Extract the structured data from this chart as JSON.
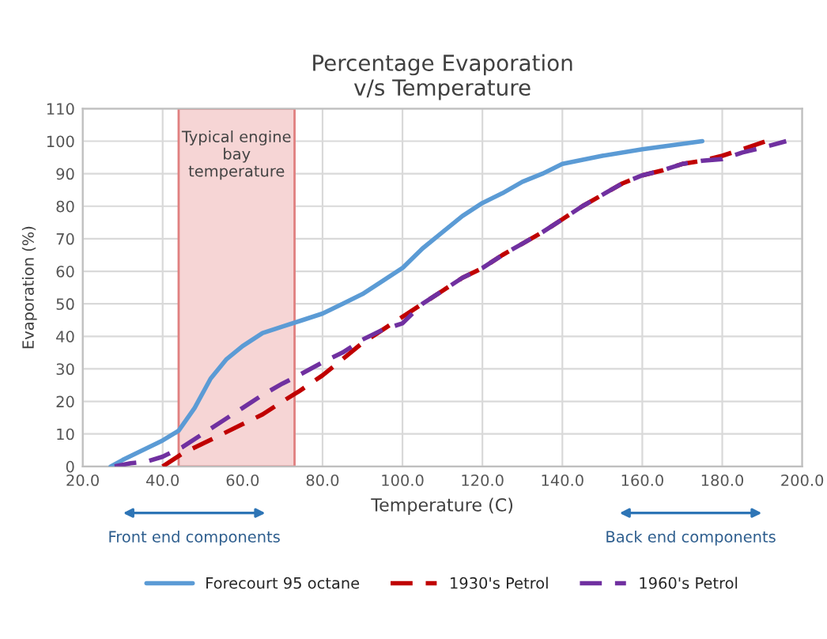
{
  "chart_data": {
    "type": "line",
    "title": "Percentage Evaporation\nv/s Temperature",
    "xlabel": "Temperature (C)",
    "ylabel": "Evaporation (%)",
    "series": [
      {
        "name": "Forecourt 95 octane",
        "color": "#5b9bd5",
        "line_style": "solid",
        "x": [
          27,
          30,
          35,
          40,
          44,
          48,
          52,
          56,
          60,
          65,
          70,
          75,
          80,
          85,
          90,
          95,
          100,
          105,
          110,
          115,
          120,
          125,
          130,
          135,
          140,
          150,
          160,
          175
        ],
        "values": [
          0,
          2,
          5,
          8,
          11,
          18,
          27,
          33,
          37,
          41,
          43,
          45,
          47,
          50,
          53,
          57,
          61,
          67,
          72,
          77,
          81,
          84,
          87.5,
          90,
          93,
          95.5,
          97.5,
          100
        ]
      },
      {
        "name": "1930's Petrol",
        "color": "#c00000",
        "line_style": "dashed",
        "x": [
          40,
          45,
          50,
          55,
          60,
          65,
          70,
          74,
          80,
          85,
          90,
          95,
          100,
          105,
          110,
          115,
          120,
          125,
          130,
          135,
          140,
          145,
          150,
          155,
          160,
          165,
          170,
          175,
          180,
          185,
          191
        ],
        "values": [
          0,
          4,
          7,
          10,
          13,
          16,
          20,
          23,
          28,
          33,
          38,
          42,
          46,
          50,
          54,
          58,
          61,
          65,
          68.5,
          72,
          76,
          80,
          83.5,
          87,
          89.5,
          91,
          93,
          94,
          95.5,
          97.5,
          100
        ]
      },
      {
        "name": "1960's Petrol",
        "color": "#7030a0",
        "line_style": "dashed",
        "x": [
          28,
          32,
          36,
          40,
          45,
          50,
          55,
          60,
          65,
          70,
          74,
          80,
          85,
          90,
          95,
          100,
          105,
          110,
          115,
          120,
          125,
          130,
          135,
          140,
          145,
          150,
          155,
          160,
          165,
          170,
          175,
          180,
          185,
          190,
          196
        ],
        "values": [
          0,
          1,
          1.5,
          3,
          6,
          10,
          14,
          18,
          22,
          25.5,
          28,
          32,
          35,
          39,
          42,
          44,
          50,
          54,
          58,
          61,
          65,
          68.5,
          72,
          76,
          80,
          83.5,
          87,
          89.5,
          91,
          93,
          94,
          94.5,
          96.5,
          98,
          100
        ]
      }
    ],
    "bands": [
      {
        "axis": "x",
        "from": 44,
        "to": 73,
        "label": "Typical engine\nbay\ntemperature",
        "color": "#f6d5d5"
      }
    ],
    "annotations": [
      "Front end components",
      "Back end components"
    ],
    "xlim": [
      20,
      200
    ],
    "ylim": [
      0,
      110
    ],
    "xticks": [
      {
        "value": 20,
        "label": "20.0"
      },
      {
        "value": 40,
        "label": "40.0"
      },
      {
        "value": 60,
        "label": "60.0"
      },
      {
        "value": 80,
        "label": "80.0"
      },
      {
        "value": 100,
        "label": "100.0"
      },
      {
        "value": 120,
        "label": "120.0"
      },
      {
        "value": 140,
        "label": "140.0"
      },
      {
        "value": 160,
        "label": "160.0"
      },
      {
        "value": 180,
        "label": "180.0"
      },
      {
        "value": 200,
        "label": "200.0"
      }
    ],
    "yticks": [
      0,
      10,
      20,
      30,
      40,
      50,
      60,
      70,
      80,
      90,
      100,
      110
    ],
    "grid": true,
    "legend": "bottom"
  }
}
